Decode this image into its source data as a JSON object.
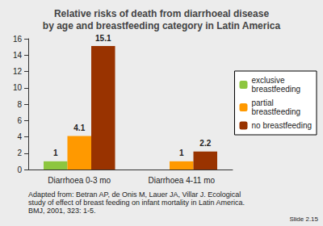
{
  "chart_data": {
    "type": "bar",
    "title": "Relative risks of death from diarrhoeal disease\nby age and breastfeeding category in Latin America",
    "categories": [
      "Diarrhoea 0-3 mo",
      "Diarrhoea 4-11 mo"
    ],
    "series": [
      {
        "name": "exclusive\nbreastfeeding",
        "color": "#8dc63f",
        "values": [
          1,
          null
        ]
      },
      {
        "name": "partial\nbreastfeeding",
        "color": "#ff9900",
        "values": [
          4.1,
          1
        ]
      },
      {
        "name": "no breastfeeding",
        "color": "#993300",
        "values": [
          15.1,
          2.2
        ]
      }
    ],
    "ylim": [
      0,
      16
    ],
    "yticks": [
      0,
      2,
      4,
      6,
      8,
      10,
      12,
      14,
      16
    ],
    "grid": false,
    "legend": "right",
    "data_labels": true,
    "annotations": [
      "Adapted from: Betran AP, de Onis M, Lauer JA, Villar J. Ecological\nstudy of effect of breast feeding on infant mortality in Latin America.\nBMJ, 2001, 323: 1-5.",
      "Slide 2.15"
    ]
  }
}
